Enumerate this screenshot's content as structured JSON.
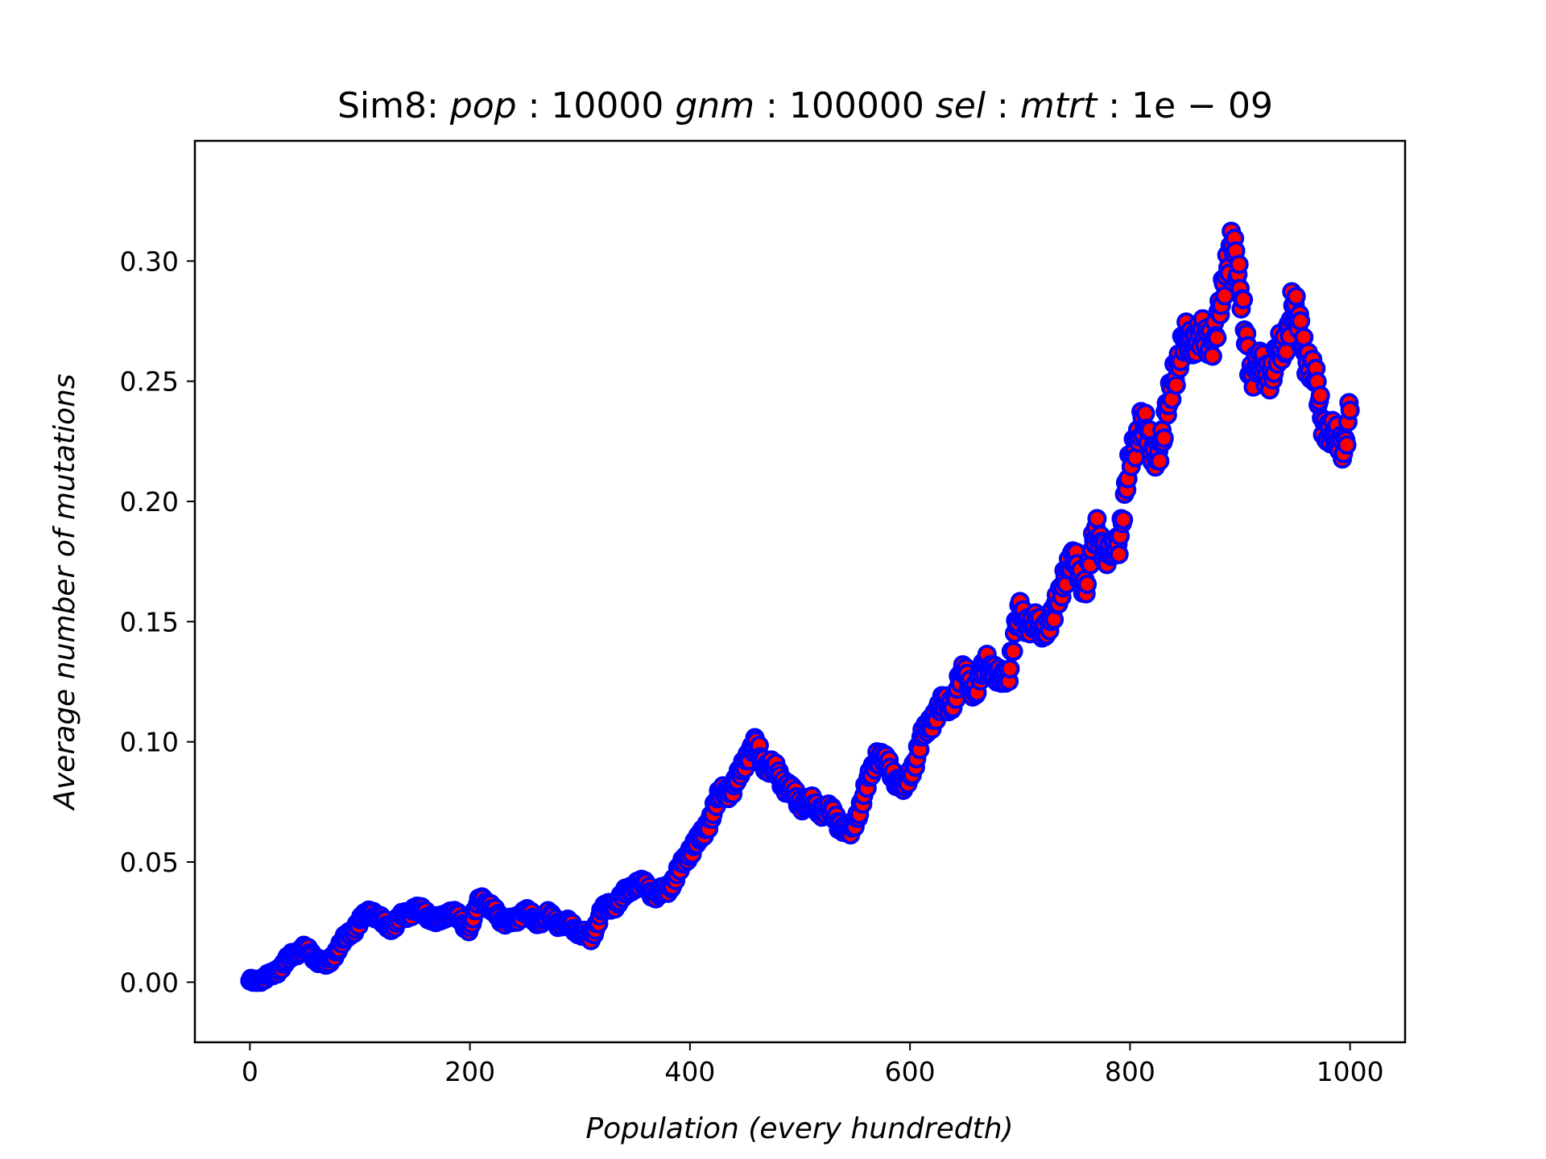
{
  "chart_data": {
    "type": "scatter",
    "title": {
      "prefix": "Sim8: ",
      "parts": [
        {
          "label": "pop",
          "value": "10000"
        },
        {
          "label": "gnm",
          "value": "100000"
        },
        {
          "label": "sel",
          "value": ""
        },
        {
          "label": "mtrt",
          "value": "1e − 09"
        }
      ]
    },
    "xlabel": "Population (every hundredth)",
    "ylabel": "Average number of mutations",
    "xlim": [
      -50,
      1050
    ],
    "ylim": [
      -0.025,
      0.35
    ],
    "xticks": [
      0,
      200,
      400,
      600,
      800,
      1000
    ],
    "xtick_labels": [
      "0",
      "200",
      "400",
      "600",
      "800",
      "1000"
    ],
    "yticks": [
      0.0,
      0.05,
      0.1,
      0.15,
      0.2,
      0.25,
      0.3
    ],
    "ytick_labels": [
      "0.00",
      "0.05",
      "0.10",
      "0.15",
      "0.20",
      "0.25",
      "0.30"
    ],
    "marker": {
      "face": "#ff0000",
      "edge": "#0000ff"
    },
    "grid": false,
    "x_step": 1,
    "y_keyframes": [
      [
        0,
        0.0
      ],
      [
        10,
        0.001
      ],
      [
        20,
        0.003
      ],
      [
        30,
        0.007
      ],
      [
        40,
        0.012
      ],
      [
        50,
        0.014
      ],
      [
        60,
        0.01
      ],
      [
        70,
        0.007
      ],
      [
        80,
        0.014
      ],
      [
        90,
        0.02
      ],
      [
        100,
        0.025
      ],
      [
        110,
        0.03
      ],
      [
        120,
        0.025
      ],
      [
        130,
        0.023
      ],
      [
        140,
        0.028
      ],
      [
        150,
        0.03
      ],
      [
        160,
        0.029
      ],
      [
        170,
        0.025
      ],
      [
        180,
        0.029
      ],
      [
        190,
        0.027
      ],
      [
        200,
        0.022
      ],
      [
        210,
        0.036
      ],
      [
        220,
        0.03
      ],
      [
        230,
        0.026
      ],
      [
        240,
        0.025
      ],
      [
        250,
        0.03
      ],
      [
        260,
        0.025
      ],
      [
        270,
        0.028
      ],
      [
        280,
        0.025
      ],
      [
        290,
        0.024
      ],
      [
        300,
        0.021
      ],
      [
        310,
        0.018
      ],
      [
        320,
        0.03
      ],
      [
        330,
        0.032
      ],
      [
        340,
        0.036
      ],
      [
        350,
        0.041
      ],
      [
        360,
        0.04
      ],
      [
        370,
        0.036
      ],
      [
        380,
        0.039
      ],
      [
        390,
        0.046
      ],
      [
        400,
        0.055
      ],
      [
        410,
        0.06
      ],
      [
        420,
        0.07
      ],
      [
        430,
        0.08
      ],
      [
        440,
        0.08
      ],
      [
        450,
        0.093
      ],
      [
        460,
        0.098
      ],
      [
        470,
        0.09
      ],
      [
        480,
        0.087
      ],
      [
        490,
        0.08
      ],
      [
        500,
        0.075
      ],
      [
        510,
        0.074
      ],
      [
        520,
        0.072
      ],
      [
        530,
        0.07
      ],
      [
        545,
        0.061
      ],
      [
        560,
        0.08
      ],
      [
        570,
        0.095
      ],
      [
        580,
        0.09
      ],
      [
        595,
        0.08
      ],
      [
        610,
        0.1
      ],
      [
        620,
        0.11
      ],
      [
        630,
        0.115
      ],
      [
        640,
        0.118
      ],
      [
        650,
        0.13
      ],
      [
        660,
        0.12
      ],
      [
        670,
        0.135
      ],
      [
        680,
        0.125
      ],
      [
        690,
        0.13
      ],
      [
        700,
        0.155
      ],
      [
        710,
        0.148
      ],
      [
        720,
        0.148
      ],
      [
        730,
        0.15
      ],
      [
        740,
        0.17
      ],
      [
        750,
        0.175
      ],
      [
        760,
        0.165
      ],
      [
        770,
        0.19
      ],
      [
        780,
        0.175
      ],
      [
        790,
        0.185
      ],
      [
        800,
        0.215
      ],
      [
        810,
        0.235
      ],
      [
        820,
        0.22
      ],
      [
        830,
        0.225
      ],
      [
        840,
        0.255
      ],
      [
        850,
        0.265
      ],
      [
        860,
        0.27
      ],
      [
        870,
        0.265
      ],
      [
        880,
        0.275
      ],
      [
        885,
        0.285
      ],
      [
        893,
        0.315
      ],
      [
        900,
        0.285
      ],
      [
        910,
        0.255
      ],
      [
        920,
        0.255
      ],
      [
        930,
        0.255
      ],
      [
        940,
        0.265
      ],
      [
        947,
        0.282
      ],
      [
        955,
        0.27
      ],
      [
        965,
        0.255
      ],
      [
        975,
        0.235
      ],
      [
        985,
        0.225
      ],
      [
        995,
        0.225
      ],
      [
        1000,
        0.238
      ]
    ]
  }
}
